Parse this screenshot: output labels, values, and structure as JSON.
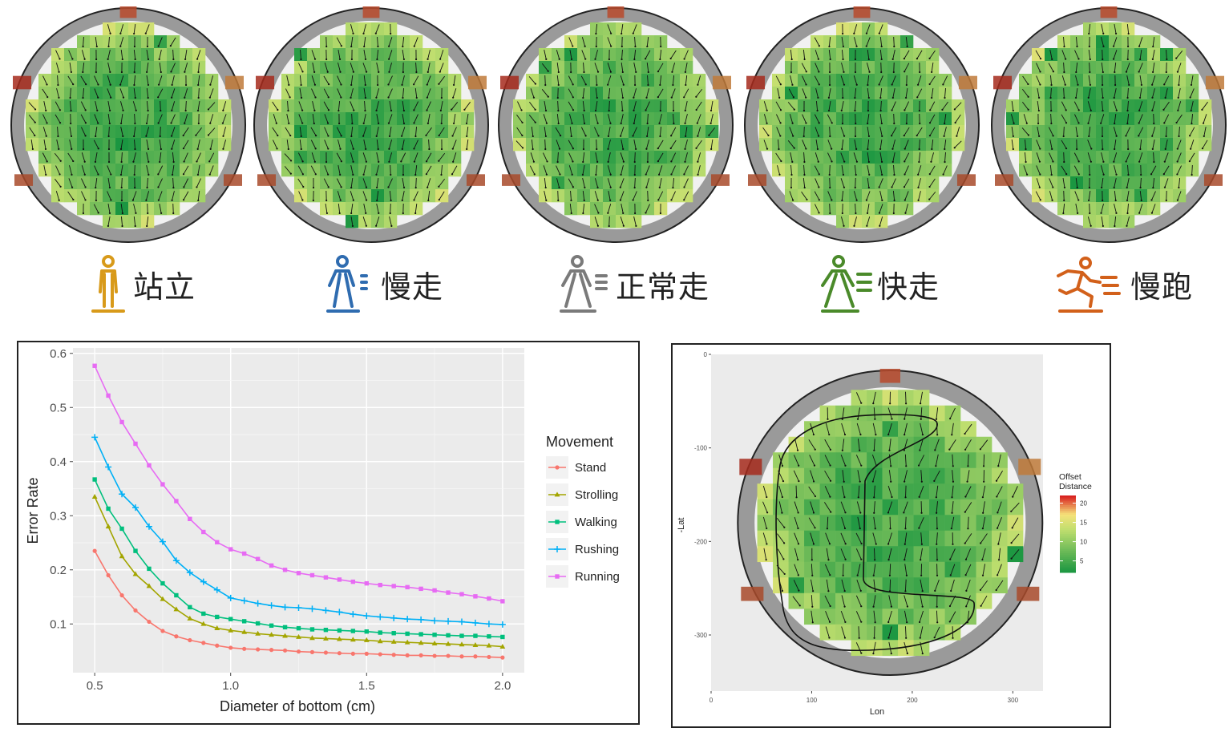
{
  "movements": [
    {
      "label": "站立",
      "icon": "standing-person-icon",
      "color": "#d89a1a"
    },
    {
      "label": "慢走",
      "icon": "strolling-person-icon",
      "color": "#2f6cb0"
    },
    {
      "label": "正常走",
      "icon": "walking-person-icon",
      "color": "#7a7a7a"
    },
    {
      "label": "快走",
      "icon": "rushing-person-icon",
      "color": "#4a8a2a"
    },
    {
      "label": "慢跑",
      "icon": "running-person-icon",
      "color": "#d2601a"
    }
  ],
  "chart_data": [
    {
      "type": "line",
      "title": "",
      "xlabel": "Diameter of bottom (cm)",
      "ylabel": "Error Rate",
      "xlim": [
        0.42,
        2.08
      ],
      "ylim": [
        0.01,
        0.61
      ],
      "xticks": [
        0.5,
        1.0,
        1.5,
        2.0
      ],
      "xtick_labels": [
        "0.5",
        "1.0",
        "1.5",
        "2.0"
      ],
      "yticks": [
        0.1,
        0.2,
        0.3,
        0.4,
        0.5,
        0.6
      ],
      "ytick_labels": [
        "0.1",
        "0.2",
        "0.3",
        "0.4",
        "0.5",
        "0.6"
      ],
      "grid": true,
      "legend_title": "Movement",
      "legend_position": "right",
      "x": [
        0.5,
        0.55,
        0.6,
        0.65,
        0.7,
        0.75,
        0.8,
        0.85,
        0.9,
        0.95,
        1.0,
        1.05,
        1.1,
        1.15,
        1.2,
        1.25,
        1.3,
        1.35,
        1.4,
        1.45,
        1.5,
        1.55,
        1.6,
        1.65,
        1.7,
        1.75,
        1.8,
        1.85,
        1.9,
        1.95,
        2.0
      ],
      "series": [
        {
          "name": "Stand",
          "color": "#F8766D",
          "marker": "circle",
          "values": [
            0.235,
            0.19,
            0.153,
            0.125,
            0.104,
            0.087,
            0.077,
            0.07,
            0.065,
            0.06,
            0.056,
            0.054,
            0.053,
            0.052,
            0.051,
            0.049,
            0.048,
            0.047,
            0.046,
            0.045,
            0.045,
            0.044,
            0.043,
            0.042,
            0.042,
            0.041,
            0.041,
            0.04,
            0.04,
            0.039,
            0.038
          ]
        },
        {
          "name": "Strolling",
          "color": "#A3A500",
          "marker": "triangle",
          "values": [
            0.335,
            0.28,
            0.225,
            0.192,
            0.17,
            0.146,
            0.127,
            0.11,
            0.1,
            0.092,
            0.088,
            0.085,
            0.082,
            0.08,
            0.078,
            0.076,
            0.074,
            0.073,
            0.072,
            0.071,
            0.07,
            0.068,
            0.067,
            0.066,
            0.065,
            0.064,
            0.063,
            0.062,
            0.061,
            0.06,
            0.058
          ]
        },
        {
          "name": "Walking",
          "color": "#00BF7D",
          "marker": "square",
          "values": [
            0.367,
            0.313,
            0.276,
            0.235,
            0.202,
            0.175,
            0.153,
            0.131,
            0.119,
            0.113,
            0.109,
            0.105,
            0.101,
            0.097,
            0.094,
            0.092,
            0.09,
            0.089,
            0.088,
            0.087,
            0.086,
            0.084,
            0.083,
            0.082,
            0.081,
            0.08,
            0.079,
            0.078,
            0.078,
            0.077,
            0.076
          ]
        },
        {
          "name": "Rushing",
          "color": "#00B0F6",
          "marker": "plus",
          "values": [
            0.445,
            0.39,
            0.34,
            0.315,
            0.28,
            0.252,
            0.217,
            0.195,
            0.178,
            0.163,
            0.148,
            0.143,
            0.138,
            0.134,
            0.131,
            0.13,
            0.128,
            0.125,
            0.122,
            0.118,
            0.115,
            0.113,
            0.111,
            0.109,
            0.108,
            0.106,
            0.105,
            0.104,
            0.102,
            0.1,
            0.099
          ]
        },
        {
          "name": "Running",
          "color": "#E76BF3",
          "marker": "square",
          "values": [
            0.577,
            0.522,
            0.473,
            0.433,
            0.393,
            0.358,
            0.327,
            0.294,
            0.27,
            0.251,
            0.238,
            0.23,
            0.22,
            0.208,
            0.2,
            0.194,
            0.19,
            0.186,
            0.182,
            0.178,
            0.175,
            0.172,
            0.17,
            0.168,
            0.165,
            0.162,
            0.158,
            0.155,
            0.151,
            0.147,
            0.142
          ]
        }
      ]
    },
    {
      "type": "heatmap",
      "title": "",
      "xlabel": "Lon",
      "ylabel": "-Lat",
      "xlim": [
        0,
        330
      ],
      "ylim": [
        -360,
        0
      ],
      "xticks": [
        0,
        100,
        200,
        300
      ],
      "xtick_labels": [
        "0",
        "100",
        "200",
        "300"
      ],
      "yticks": [
        0,
        -100,
        -200,
        -300
      ],
      "ytick_labels": [
        "0",
        "-100",
        "-200",
        "-300"
      ],
      "legend_title_lines": [
        "Offset",
        "Distance"
      ],
      "legend_ticks": [
        20,
        15,
        10,
        5
      ],
      "legend_tick_labels": [
        "20",
        "15",
        "10",
        "5"
      ],
      "legend_range": [
        2,
        22
      ],
      "colors": {
        "low": "#1a9641",
        "mid": "#f6e27a",
        "high": "#d7191c",
        "ring": "#9a9a9a",
        "arrow": "#111111"
      }
    }
  ]
}
